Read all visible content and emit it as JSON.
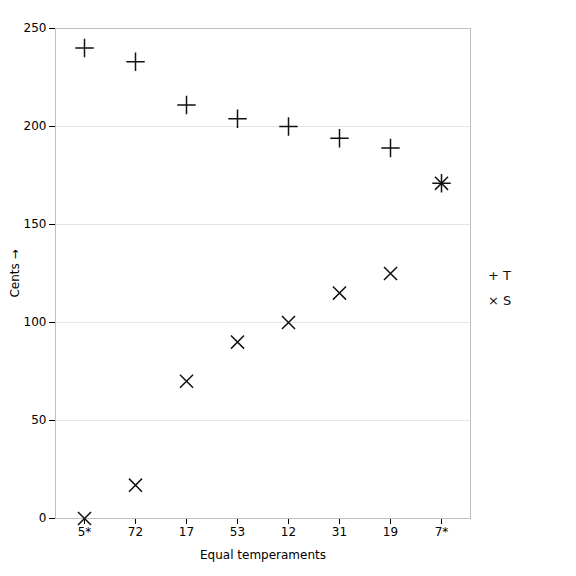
{
  "chart_data": {
    "type": "scatter",
    "categories": [
      "5*",
      "72",
      "17",
      "53",
      "12",
      "31",
      "19",
      "7*"
    ],
    "series": [
      {
        "name": "+ T",
        "color": "#111111",
        "marker": "plus",
        "values": [
          240,
          233,
          211,
          204,
          200,
          194,
          189,
          171
        ]
      },
      {
        "name": "× S",
        "color": "#111111",
        "marker": "x",
        "values": [
          0,
          17,
          70,
          90,
          100,
          115,
          125,
          171
        ]
      }
    ],
    "xlabel": "Equal temperaments",
    "ylabel": "Cents",
    "ylim": [
      0,
      250
    ],
    "yticks": [
      0,
      50,
      100,
      150,
      200,
      250
    ],
    "grid": "y",
    "legend": "right"
  }
}
